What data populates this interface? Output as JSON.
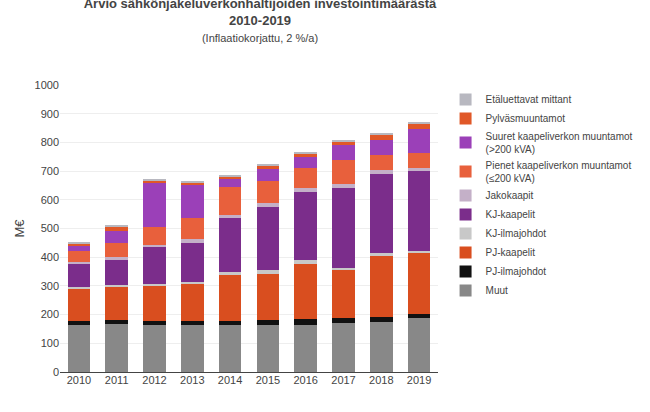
{
  "chart_data": {
    "type": "bar",
    "stacked": true,
    "title": "Arvio sähkönjakeluverkonhaltijoiden investointimäärästä\n2010-2019",
    "subtitle": "(Inflaatiokorjattu, 2 %/a)",
    "y_label": "M€",
    "categories": [
      2010,
      2011,
      2012,
      2013,
      2014,
      2015,
      2016,
      2017,
      2018,
      2019
    ],
    "series": [
      {
        "name": "Muut",
        "color": "#888888",
        "values": [
          165,
          168,
          165,
          165,
          165,
          165,
          165,
          170,
          175,
          188
        ]
      },
      {
        "name": "PJ-ilmajohdot",
        "color": "#111111",
        "values": [
          12,
          12,
          12,
          12,
          12,
          15,
          18,
          18,
          18,
          14
        ]
      },
      {
        "name": "PJ-kaapelit",
        "color": "#d94e1f",
        "values": [
          112,
          115,
          122,
          128,
          162,
          162,
          195,
          168,
          212,
          212
        ]
      },
      {
        "name": "KJ-ilmajohdot",
        "color": "#c8c8c8",
        "values": [
          8,
          8,
          8,
          8,
          8,
          12,
          12,
          8,
          8,
          8
        ]
      },
      {
        "name": "KJ-kaapelit",
        "color": "#7b2d8b",
        "values": [
          78,
          88,
          128,
          138,
          188,
          222,
          238,
          278,
          278,
          278
        ]
      },
      {
        "name": "Jakokaapit",
        "color": "#c4b0c8",
        "values": [
          8,
          8,
          8,
          12,
          12,
          12,
          12,
          12,
          12,
          12
        ]
      },
      {
        "name": "Pienet kaapeliverkon muuntamot\n(≤200 kVA)",
        "color": "#e8603c",
        "values": [
          38,
          52,
          62,
          72,
          96,
          76,
          72,
          86,
          52,
          52
        ]
      },
      {
        "name": "Suuret kaapeliverkon muuntamot\n(>200 kVA)",
        "color": "#9b40b8",
        "values": [
          18,
          42,
          152,
          115,
          28,
          42,
          36,
          52,
          52,
          82
        ]
      },
      {
        "name": "Pylväsmuuntamot",
        "color": "#e05828",
        "values": [
          10,
          14,
          10,
          10,
          10,
          14,
          14,
          10,
          20,
          20
        ]
      },
      {
        "name": "Etäluettavat mittant",
        "color": "#b8b8c0",
        "values": [
          5,
          5,
          5,
          5,
          5,
          5,
          5,
          5,
          5,
          5
        ]
      }
    ],
    "ylim": [
      0,
      1000
    ],
    "yticks": [
      0,
      100,
      200,
      300,
      400,
      500,
      600,
      700,
      800,
      900,
      1000
    ],
    "grid": true,
    "legend": "right"
  }
}
